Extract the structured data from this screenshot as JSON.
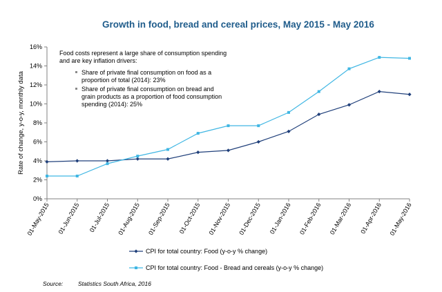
{
  "chart_data": {
    "type": "line",
    "title": "Growth in food, bread and cereal prices, May 2015 - May 2016",
    "ylabel": "Rate of change, y-o-y, monthly data",
    "xlabel": "",
    "categories": [
      "01-May-2015",
      "01-Jun-2015",
      "01-Jul-2015",
      "01-Aug-2015",
      "01-Sep-2015",
      "01-Oct-2015",
      "01-Nov-2015",
      "01-Dec-2015",
      "01-Jan-2016",
      "01-Feb-2016",
      "01-Mar-2016",
      "01-Apr-2016",
      "01-May-2016"
    ],
    "yticks": [
      "0%",
      "2%",
      "4%",
      "6%",
      "8%",
      "10%",
      "12%",
      "14%",
      "16%"
    ],
    "ylim": [
      0,
      16
    ],
    "grid": false,
    "series": [
      {
        "name": "CPI for total country: Food (y-o-y % change)",
        "color": "#1f3f7a",
        "marker": "diamond",
        "values": [
          3.9,
          4.0,
          4.0,
          4.2,
          4.2,
          4.9,
          5.1,
          6.0,
          7.1,
          8.9,
          9.9,
          11.3,
          11.0
        ]
      },
      {
        "name": "CPI for total country: Food - Bread and cereals (y-o-y % change)",
        "color": "#3fb6e3",
        "marker": "square",
        "values": [
          2.4,
          2.4,
          3.7,
          4.5,
          5.2,
          6.9,
          7.7,
          7.7,
          9.1,
          11.3,
          13.7,
          14.9,
          14.8
        ]
      }
    ],
    "annotation": {
      "intro": [
        "Food costs represent a large share of consumption spending",
        "and are key inflation drivers:"
      ],
      "bullets": [
        [
          "Share of private final consumption on food as a",
          "proportion of total (2014): 23%"
        ],
        [
          "Share of private final consumption on bread and",
          "grain products as a proportion of food consumption",
          "spending (2014): 25%"
        ]
      ]
    },
    "legend_position": "bottom"
  },
  "source": {
    "label": "Source:",
    "text": "Statistics South Africa, 2016"
  }
}
